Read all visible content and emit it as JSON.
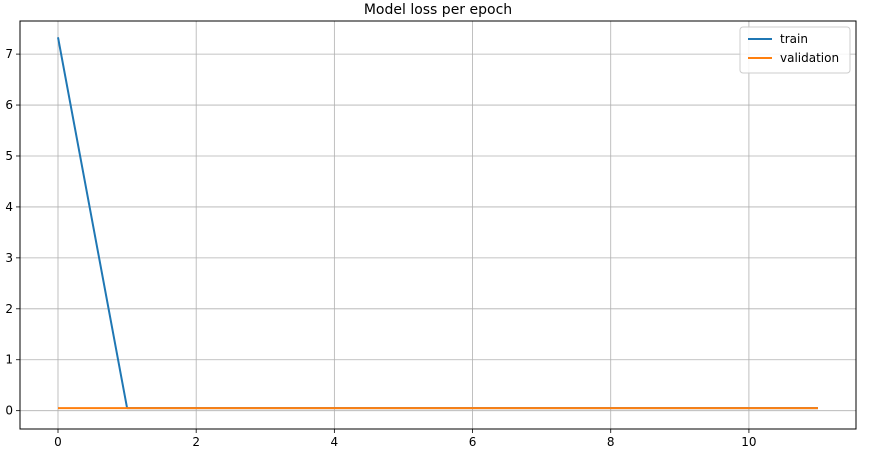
{
  "chart_data": {
    "type": "line",
    "title": "Model loss per epoch",
    "xlabel": "",
    "ylabel": "",
    "xlim": [
      -0.55,
      11.55
    ],
    "ylim": [
      -0.36,
      7.65
    ],
    "xticks": [
      0,
      2,
      4,
      6,
      8,
      10
    ],
    "yticks": [
      0,
      1,
      2,
      3,
      4,
      5,
      6,
      7
    ],
    "grid": true,
    "legend": "top-right",
    "x": [
      0,
      1,
      2,
      3,
      4,
      5,
      6,
      7,
      8,
      9,
      10,
      11
    ],
    "series": [
      {
        "name": "train",
        "color": "#1f77b4",
        "values": [
          7.33,
          0.05,
          0.05,
          0.05,
          0.05,
          0.05,
          0.05,
          0.05,
          0.05,
          0.05,
          0.05,
          0.05
        ]
      },
      {
        "name": "validation",
        "color": "#ff7f0e",
        "values": [
          0.05,
          0.05,
          0.05,
          0.05,
          0.05,
          0.05,
          0.05,
          0.05,
          0.05,
          0.05,
          0.05,
          0.05
        ]
      }
    ]
  }
}
